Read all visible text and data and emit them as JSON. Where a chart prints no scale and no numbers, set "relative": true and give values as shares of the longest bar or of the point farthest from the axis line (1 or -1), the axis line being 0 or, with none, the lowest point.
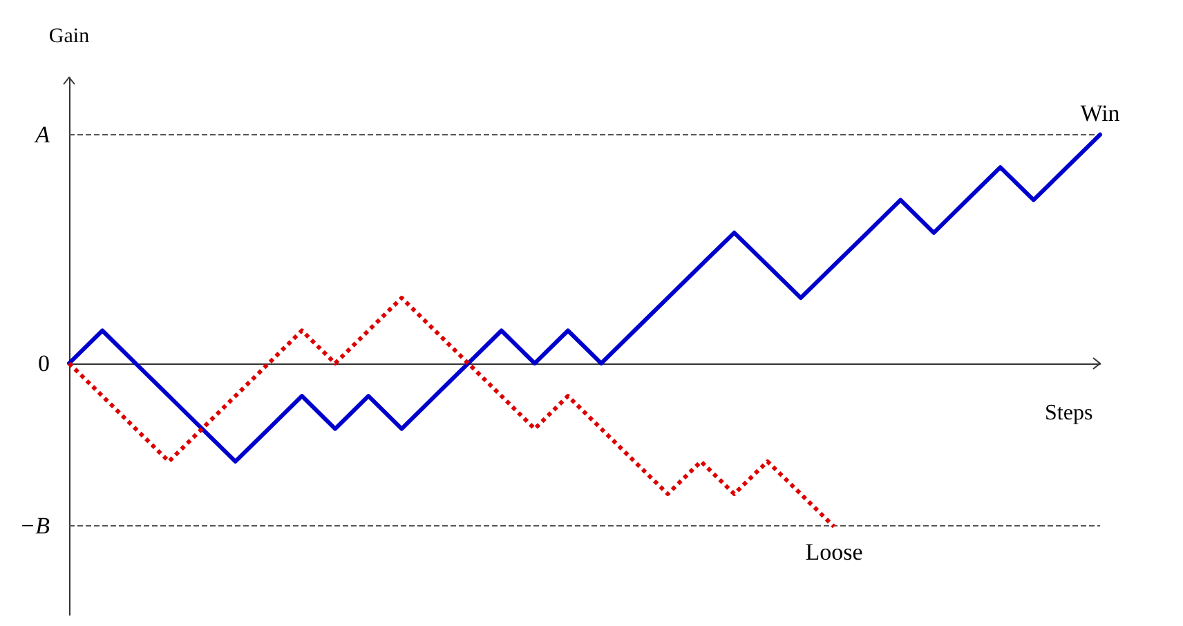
{
  "chart_data": {
    "type": "line",
    "relative": true,
    "xlabel": "Steps",
    "ylabel": "Gain",
    "categories": [
      null,
      null,
      null,
      null,
      null,
      null,
      null,
      null,
      null,
      null,
      null,
      null,
      null,
      null,
      null,
      null,
      null,
      null,
      null,
      null,
      null,
      null,
      null,
      null,
      null,
      null,
      null,
      null,
      null,
      null,
      null,
      null
    ],
    "series": [
      {
        "color": "#0000cc",
        "line_style": "solid",
        "values": [
          0,
          0.143,
          0,
          -0.143,
          -0.286,
          -0.429,
          -0.286,
          -0.143,
          -0.286,
          -0.143,
          -0.286,
          -0.143,
          0,
          0.143,
          0,
          0.143,
          0,
          0.143,
          0.286,
          0.429,
          0.571,
          0.429,
          0.286,
          0.429,
          0.571,
          0.714,
          0.571,
          0.714,
          0.857,
          0.714,
          0.857,
          1
        ]
      },
      {
        "color": "#dd0000",
        "line_style": "dotted",
        "values": [
          0,
          -0.143,
          -0.286,
          -0.429,
          -0.286,
          -0.143,
          0,
          0.143,
          0,
          0.143,
          0.286,
          0.143,
          0,
          -0.143,
          -0.286,
          -0.143,
          -0.286,
          -0.429,
          -0.571,
          -0.429,
          -0.571,
          -0.429,
          -0.571,
          -0.714,
          null,
          null,
          null,
          null,
          null,
          null,
          null,
          null
        ]
      }
    ],
    "ref_lines": [
      {
        "axis": "y",
        "value": 1,
        "label": "A",
        "line_style": "dashed",
        "color": "#555555"
      },
      {
        "axis": "y",
        "value": 0,
        "label": "0",
        "line_style": "solid",
        "color": "#333333"
      },
      {
        "axis": "y",
        "value": -0.714,
        "label": "−B",
        "line_style": "dashed",
        "color": "#555555"
      }
    ],
    "annotations": [
      "Win",
      "Loose"
    ],
    "marker": "none",
    "grid": false
  }
}
